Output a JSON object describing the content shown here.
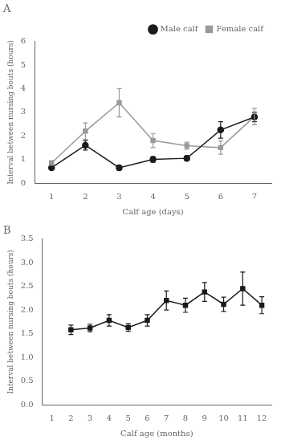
{
  "chart_data": [
    {
      "type": "line",
      "title": "A",
      "x": [
        1,
        2,
        3,
        4,
        5,
        6,
        7
      ],
      "series": [
        {
          "name": "Male calf",
          "color": "#1a1a1a",
          "marker": "o",
          "values": [
            0.65,
            1.6,
            0.65,
            1.0,
            1.05,
            2.25,
            2.8
          ],
          "yerr": [
            0.08,
            0.2,
            0.1,
            0.12,
            0.1,
            0.35,
            0.2
          ]
        },
        {
          "name": "Female calf",
          "color": "#999999",
          "marker": "s",
          "values": [
            0.85,
            2.2,
            3.4,
            1.8,
            1.58,
            1.5,
            2.82
          ],
          "yerr": [
            0.1,
            0.35,
            0.6,
            0.3,
            0.15,
            0.28,
            0.35
          ]
        }
      ],
      "xlabel": "Calf age (days)",
      "ylabel": "Interval between nursing bouts (hours)",
      "xlim": [
        0.5,
        7.5
      ],
      "xticks": [
        1,
        2,
        3,
        4,
        5,
        6,
        7
      ],
      "ylim": [
        0,
        6
      ],
      "yticks": [
        0,
        1,
        2,
        3,
        4,
        5,
        6
      ],
      "grid": false,
      "legend": "upper right"
    },
    {
      "type": "line",
      "title": "B",
      "x": [
        2,
        3,
        4,
        5,
        6,
        7,
        8,
        9,
        10,
        11,
        12
      ],
      "series": [
        {
          "color": "#1a1a1a",
          "marker": "s",
          "values": [
            1.58,
            1.62,
            1.78,
            1.63,
            1.78,
            2.2,
            2.1,
            2.38,
            2.12,
            2.45,
            2.1
          ],
          "yerr": [
            0.1,
            0.08,
            0.12,
            0.08,
            0.12,
            0.2,
            0.15,
            0.2,
            0.15,
            0.35,
            0.18
          ]
        }
      ],
      "xlabel": "Calf age (months)",
      "ylabel": "Interval between nursing bouts (hours)",
      "xlim": [
        0.5,
        12.5
      ],
      "xticks": [
        1,
        2,
        3,
        4,
        5,
        6,
        7,
        8,
        9,
        10,
        11,
        12
      ],
      "ylim": [
        0,
        3.5
      ],
      "yticks": [
        {
          "value": 0,
          "label": "0.0"
        },
        0.5,
        {
          "value": 1.0,
          "label": "1.0"
        },
        1.5,
        {
          "value": 2.0,
          "label": "2.0"
        },
        2.5,
        {
          "value": 3.0,
          "label": "3.0"
        },
        3.5
      ],
      "grid": false
    }
  ]
}
